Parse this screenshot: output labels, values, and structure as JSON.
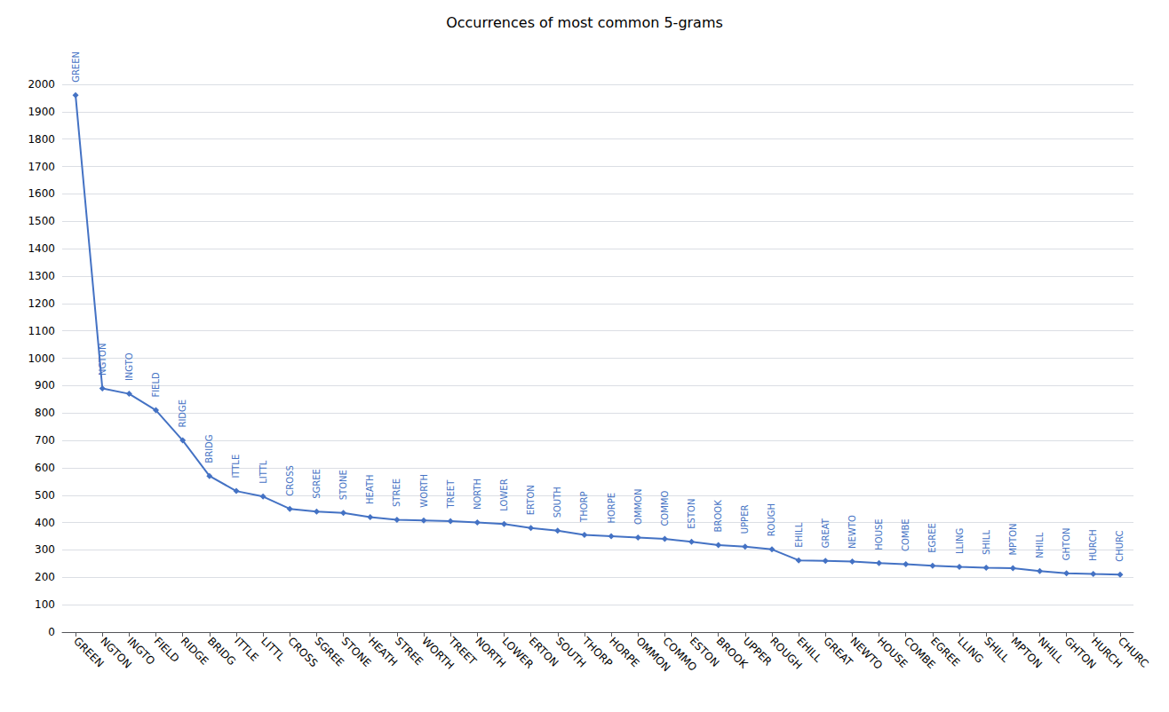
{
  "chart_data": {
    "type": "line",
    "title": "Occurrences of most common 5-grams",
    "categories": [
      "GREEN",
      "NGTON",
      "INGTO",
      "FIELD",
      "RIDGE",
      "BRIDG",
      "ITTLE",
      "LITTL",
      "CROSS",
      "SGREE",
      "STONE",
      "HEATH",
      "STREE",
      "WORTH",
      "TREET",
      "NORTH",
      "LOWER",
      "ERTON",
      "SOUTH",
      "THORP",
      "HORPE",
      "OMMON",
      "COMMO",
      "ESTON",
      "BROOK",
      "UPPER",
      "ROUGH",
      "EHILL",
      "GREAT",
      "NEWTO",
      "HOUSE",
      "COMBE",
      "EGREE",
      "LLING",
      "SHILL",
      "MPTON",
      "NHILL",
      "GHTON",
      "HURCH",
      "CHURC"
    ],
    "values": [
      1960,
      890,
      870,
      810,
      700,
      570,
      515,
      495,
      450,
      440,
      435,
      420,
      410,
      408,
      405,
      400,
      395,
      380,
      370,
      355,
      350,
      345,
      340,
      330,
      318,
      312,
      302,
      262,
      260,
      258,
      252,
      248,
      242,
      238,
      235,
      233,
      223,
      215,
      212,
      210
    ],
    "annotations": [
      "GREEN",
      "NGTON",
      "INGTO",
      "FIELD",
      "RIDGE",
      "BRIDG",
      "ITTLE",
      "LITTL",
      "CROSS",
      "SGREE",
      "STONE",
      "HEATH",
      "STREE",
      "WORTH",
      "TREET",
      "NORTH",
      "LOWER",
      "ERTON",
      "SOUTH",
      "THORP",
      "HORPE",
      "OMMON",
      "COMMO",
      "ESTON",
      "BROOK",
      "UPPER",
      "ROUGH",
      "EHILL",
      "GREAT",
      "NEWTO",
      "HOUSE",
      "COMBE",
      "EGREE",
      "LLING",
      "SHILL",
      "MPTON",
      "NHILL",
      "GHTON",
      "HURCH",
      "CHURC"
    ],
    "color": "#4472C4",
    "marker": "diamond",
    "ylim": [
      0,
      2000
    ],
    "yticks": [
      0,
      100,
      200,
      300,
      400,
      500,
      600,
      700,
      800,
      900,
      1000,
      1100,
      1200,
      1300,
      1400,
      1500,
      1600,
      1700,
      1800,
      1900,
      2000
    ],
    "grid": true
  }
}
